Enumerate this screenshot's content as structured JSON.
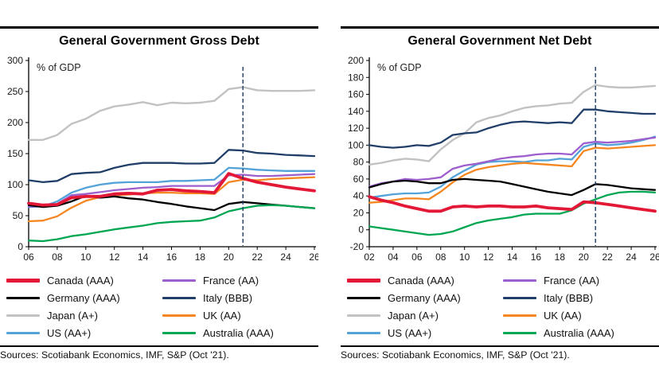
{
  "page": {
    "sources": "Sources: Scotiabank Economics, IMF, S&P (Oct '21)."
  },
  "colors": {
    "canada": "#e31837",
    "germany": "#000000",
    "japan": "#c2c2c2",
    "us": "#53a2d8",
    "france": "#9e5fce",
    "italy": "#203e68",
    "uk": "#f6861f",
    "australia": "#00a651",
    "dashed": "#203e68"
  },
  "legend": {
    "columns": [
      [
        {
          "label": "Canada (AAA)",
          "key": "canada",
          "thick": true
        },
        {
          "label": "Germany (AAA)",
          "key": "germany",
          "thick": false
        },
        {
          "label": "Japan (A+)",
          "key": "japan",
          "thick": false
        },
        {
          "label": "US (AA+)",
          "key": "us",
          "thick": false
        }
      ],
      [
        {
          "label": "France (AA)",
          "key": "france",
          "thick": false
        },
        {
          "label": "Italy (BBB)",
          "key": "italy",
          "thick": false
        },
        {
          "label": "UK (AA)",
          "key": "uk",
          "thick": false
        },
        {
          "label": "Australia (AAA)",
          "key": "australia",
          "thick": false
        }
      ]
    ]
  },
  "chart_data": [
    {
      "type": "line",
      "title": "General Government Gross Debt",
      "ylabel": "% of GDP",
      "ylim": [
        0,
        300
      ],
      "yticks": [
        0,
        50,
        100,
        150,
        200,
        250,
        300
      ],
      "grid": false,
      "legend_position": "bottom",
      "dashed_x": 2021,
      "x": [
        2006,
        2007,
        2008,
        2009,
        2010,
        2011,
        2012,
        2013,
        2014,
        2015,
        2016,
        2017,
        2018,
        2019,
        2020,
        2021,
        2022,
        2023,
        2024,
        2025,
        2026
      ],
      "xticks": [
        2006,
        2008,
        2010,
        2012,
        2014,
        2016,
        2018,
        2020,
        2022,
        2024,
        2026
      ],
      "xtick_labels": [
        "06",
        "08",
        "10",
        "12",
        "14",
        "16",
        "18",
        "20",
        "22",
        "24",
        "26"
      ],
      "series": [
        {
          "name": "Japan (A+)",
          "key": "japan",
          "width": 2.4,
          "values": [
            172,
            172,
            180,
            198,
            206,
            219,
            226,
            229,
            233,
            228,
            232,
            231,
            232,
            235,
            254,
            257,
            252,
            251,
            251,
            251,
            252
          ]
        },
        {
          "name": "US (AA+)",
          "key": "us",
          "width": 2.3,
          "values": [
            64,
            65,
            73,
            87,
            95,
            100,
            103,
            104,
            104,
            104,
            106,
            106,
            107,
            108,
            127,
            126,
            124,
            123,
            122,
            122,
            122
          ]
        },
        {
          "name": "France (AA)",
          "key": "france",
          "width": 2.3,
          "values": [
            65,
            65,
            69,
            83,
            85,
            88,
            91,
            93,
            95,
            96,
            98,
            98,
            98,
            98,
            115,
            116,
            114,
            114,
            115,
            116,
            117
          ]
        },
        {
          "name": "UK (AA)",
          "key": "uk",
          "width": 2.3,
          "values": [
            41,
            42,
            49,
            63,
            74,
            80,
            83,
            84,
            86,
            87,
            87,
            86,
            86,
            85,
            104,
            108,
            107,
            109,
            110,
            111,
            112
          ]
        },
        {
          "name": "Italy (BBB)",
          "key": "italy",
          "width": 2.3,
          "values": [
            107,
            104,
            106,
            117,
            119,
            120,
            127,
            132,
            135,
            135,
            135,
            134,
            134,
            135,
            156,
            155,
            151,
            150,
            148,
            147,
            146
          ]
        },
        {
          "name": "Germany (AAA)",
          "key": "germany",
          "width": 2.3,
          "values": [
            67,
            64,
            66,
            73,
            82,
            79,
            81,
            78,
            76,
            72,
            69,
            65,
            62,
            59,
            69,
            72,
            70,
            68,
            66,
            64,
            62
          ]
        },
        {
          "name": "Australia (AAA)",
          "key": "australia",
          "width": 2.3,
          "values": [
            10,
            9,
            12,
            17,
            20,
            24,
            28,
            31,
            34,
            38,
            40,
            41,
            42,
            47,
            57,
            62,
            66,
            67,
            66,
            64,
            62
          ]
        },
        {
          "name": "Canada (AAA)",
          "key": "canada",
          "width": 3.8,
          "values": [
            70,
            67,
            68,
            79,
            81,
            81,
            85,
            86,
            85,
            91,
            92,
            90,
            89,
            87,
            118,
            110,
            104,
            100,
            96,
            93,
            90
          ]
        }
      ]
    },
    {
      "type": "line",
      "title": "General Government Net Debt",
      "ylabel": "% of GDP",
      "ylim": [
        -20,
        200
      ],
      "yticks": [
        -20,
        0,
        20,
        40,
        60,
        80,
        100,
        120,
        140,
        160,
        180,
        200
      ],
      "grid": false,
      "legend_position": "bottom",
      "dashed_x": 2021,
      "x": [
        2002,
        2003,
        2004,
        2005,
        2006,
        2007,
        2008,
        2009,
        2010,
        2011,
        2012,
        2013,
        2014,
        2015,
        2016,
        2017,
        2018,
        2019,
        2020,
        2021,
        2022,
        2023,
        2024,
        2025,
        2026
      ],
      "xticks": [
        2002,
        2004,
        2006,
        2008,
        2010,
        2012,
        2014,
        2016,
        2018,
        2020,
        2022,
        2024,
        2026
      ],
      "xtick_labels": [
        "02",
        "04",
        "06",
        "08",
        "10",
        "12",
        "14",
        "16",
        "18",
        "20",
        "22",
        "24",
        "26"
      ],
      "series": [
        {
          "name": "Japan (A+)",
          "key": "japan",
          "width": 2.4,
          "values": [
            77,
            79,
            82,
            84,
            83,
            81,
            95,
            106,
            114,
            127,
            132,
            135,
            140,
            144,
            146,
            147,
            149,
            150,
            163,
            171,
            169,
            168,
            168,
            169,
            170
          ]
        },
        {
          "name": "US (AA+)",
          "key": "us",
          "width": 2.3,
          "values": [
            38,
            40,
            42,
            43,
            43,
            44,
            51,
            62,
            70,
            77,
            80,
            81,
            81,
            80,
            82,
            82,
            84,
            83,
            98,
            102,
            100,
            101,
            103,
            106,
            110
          ]
        },
        {
          "name": "France (AA)",
          "key": "france",
          "width": 2.3,
          "values": [
            51,
            55,
            57,
            60,
            59,
            60,
            62,
            72,
            76,
            78,
            81,
            84,
            86,
            87,
            89,
            90,
            90,
            89,
            102,
            104,
            103,
            104,
            105,
            107,
            109
          ]
        },
        {
          "name": "UK (AA)",
          "key": "uk",
          "width": 2.3,
          "values": [
            32,
            33,
            35,
            37,
            37,
            36,
            45,
            56,
            65,
            71,
            74,
            76,
            78,
            79,
            78,
            77,
            76,
            75,
            93,
            97,
            96,
            97,
            98,
            99,
            100
          ]
        },
        {
          "name": "Italy (BBB)",
          "key": "italy",
          "width": 2.3,
          "values": [
            100,
            98,
            97,
            98,
            100,
            99,
            103,
            112,
            114,
            115,
            120,
            124,
            127,
            128,
            127,
            126,
            127,
            126,
            142,
            142,
            140,
            139,
            138,
            137,
            137
          ]
        },
        {
          "name": "Germany (AAA)",
          "key": "germany",
          "width": 2.3,
          "values": [
            50,
            54,
            57,
            58,
            57,
            55,
            55,
            59,
            60,
            59,
            58,
            57,
            54,
            51,
            48,
            45,
            43,
            41,
            47,
            54,
            53,
            51,
            49,
            48,
            47
          ]
        },
        {
          "name": "Australia (AAA)",
          "key": "australia",
          "width": 2.3,
          "values": [
            4,
            2,
            0,
            -2,
            -4,
            -6,
            -5,
            -2,
            3,
            8,
            11,
            13,
            15,
            18,
            19,
            19,
            19,
            23,
            31,
            36,
            41,
            44,
            45,
            45,
            44
          ]
        },
        {
          "name": "Canada (AAA)",
          "key": "canada",
          "width": 3.8,
          "values": [
            39,
            35,
            32,
            28,
            25,
            22,
            22,
            27,
            28,
            27,
            28,
            28,
            27,
            27,
            28,
            26,
            25,
            24,
            33,
            32,
            30,
            28,
            26,
            24,
            22
          ]
        }
      ]
    }
  ]
}
